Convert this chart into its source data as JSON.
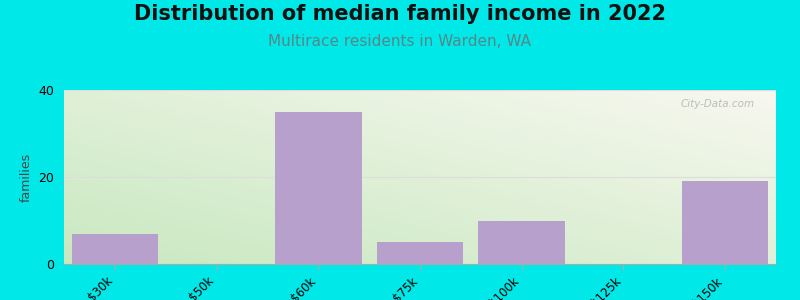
{
  "title": "Distribution of median family income in 2022",
  "subtitle": "Multirace residents in Warden, WA",
  "categories": [
    "$30k",
    "$50k",
    "$60k",
    "$75k",
    "$100k",
    "$125k",
    ">$150k"
  ],
  "values": [
    7,
    0,
    35,
    5,
    10,
    0,
    19
  ],
  "bar_color": "#b8a0cc",
  "ylabel": "families",
  "ylim": [
    0,
    40
  ],
  "yticks": [
    0,
    20,
    40
  ],
  "bg_outer": "#00e8e8",
  "bg_plot_topleft": "#c8e8c0",
  "bg_plot_bottomright": "#f8f8f0",
  "title_fontsize": 15,
  "subtitle_fontsize": 11,
  "subtitle_color": "#558888",
  "watermark": "City-Data.com",
  "grid_color": "#dddddd",
  "title_color": "#111111"
}
